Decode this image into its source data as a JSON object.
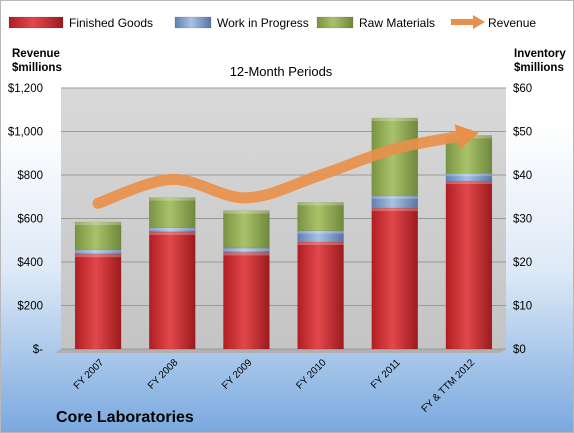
{
  "colors": {
    "finished": "#c9262b",
    "wip": "#7d9ccd",
    "raw": "#93ab54",
    "revenue": "#e8904a"
  },
  "chart_data": {
    "type": "bar",
    "stacked": true,
    "title": "12-Month Periods",
    "company": "Core Laboratories",
    "categories": [
      "FY 2007",
      "FY 2008",
      "FY 2009",
      "FY 2010",
      "FY 2011",
      "FY & TTM 2012"
    ],
    "y_left": {
      "label_line1": "Revenue",
      "label_line2": "$millions",
      "range": [
        0,
        1200
      ],
      "ticks": [
        0,
        200,
        400,
        600,
        800,
        1000,
        1200
      ],
      "tick_labels": [
        "$-",
        "$200",
        "$400",
        "$600",
        "$800",
        "$1,000",
        "$1,200"
      ]
    },
    "y_right": {
      "label_line1": "Inventory",
      "label_line2": "$millions",
      "range": [
        0,
        60
      ],
      "ticks": [
        0,
        10,
        20,
        30,
        40,
        50,
        60
      ],
      "tick_labels": [
        "$0",
        "$10",
        "$20",
        "$30",
        "$40",
        "$50",
        "$60"
      ]
    },
    "series": [
      {
        "name": "Finished Goods",
        "axis": "right",
        "kind": "bar",
        "values": [
          21.8,
          26.9,
          22.2,
          24.6,
          32.4,
          38.6
        ]
      },
      {
        "name": "Work in Progress",
        "axis": "right",
        "kind": "bar",
        "values": [
          1.0,
          1.0,
          1.0,
          2.6,
          2.8,
          1.8
        ]
      },
      {
        "name": "Raw Materials",
        "axis": "right",
        "kind": "bar",
        "values": [
          6.4,
          6.9,
          8.6,
          6.5,
          17.9,
          8.7
        ]
      },
      {
        "name": "Revenue",
        "axis": "left",
        "kind": "line",
        "values": [
          670,
          780,
          695,
          800,
          920,
          985
        ]
      }
    ],
    "grid": true,
    "legend_position": "top"
  }
}
